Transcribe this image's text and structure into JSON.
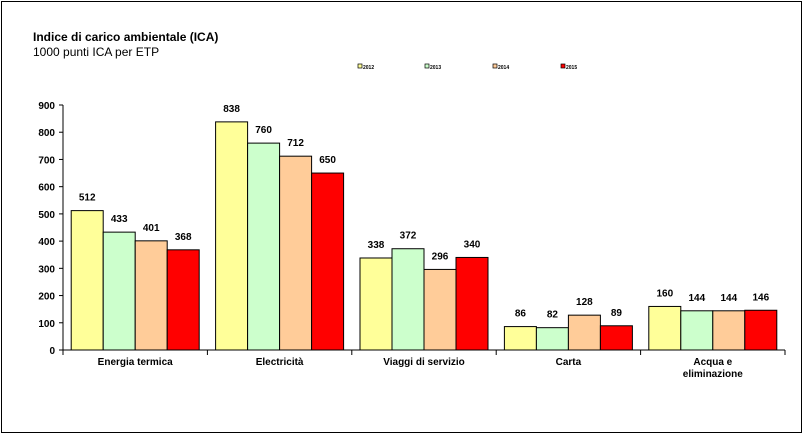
{
  "chart_data": {
    "type": "bar",
    "title": "Indice di carico ambientale (ICA)",
    "subtitle": "1000 punti ICA per ETP",
    "categories": [
      "Energia termica",
      "Electricità",
      "Viaggi di servizio",
      "Carta",
      "Acqua e eliminazione"
    ],
    "series": [
      {
        "name": "2012",
        "color": "#ffff99",
        "values": [
          512,
          838,
          338,
          86,
          160
        ]
      },
      {
        "name": "2013",
        "color": "#ccffcc",
        "values": [
          433,
          760,
          372,
          82,
          144
        ]
      },
      {
        "name": "2014",
        "color": "#ffcc99",
        "values": [
          401,
          712,
          296,
          128,
          144
        ]
      },
      {
        "name": "2015",
        "color": "#ff0000",
        "values": [
          368,
          650,
          340,
          89,
          146
        ]
      }
    ],
    "ylim": [
      0,
      900
    ],
    "yticks": [
      "0",
      "100",
      "200",
      "300",
      "400",
      "500",
      "600",
      "700",
      "800",
      "900"
    ],
    "grid": false,
    "legend_position": "top-right"
  }
}
